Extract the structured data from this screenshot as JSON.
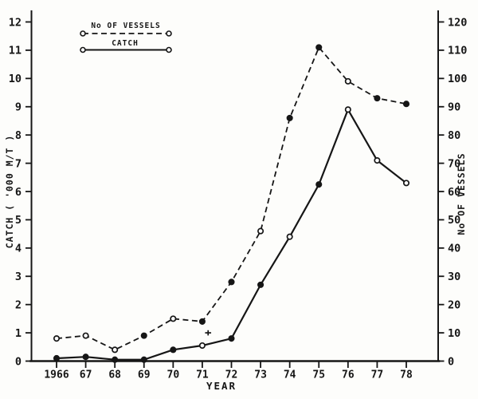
{
  "figure": {
    "paper_color": "#fdfdfb",
    "ink_color": "#161616"
  },
  "chart_data": {
    "type": "line",
    "title": "",
    "xlabel": "YEAR",
    "x_tick_labels": [
      "1966",
      "67",
      "68",
      "69",
      "70",
      "71",
      "72",
      "73",
      "74",
      "75",
      "76",
      "77",
      "78"
    ],
    "left_axis": {
      "label": "CATCH ( '000 M/T )",
      "min": 0,
      "max": 12,
      "major_step": 1,
      "tick_labels": [
        "0",
        "1",
        "2",
        "3",
        "4",
        "5",
        "6",
        "7",
        "8",
        "9",
        "10",
        "11",
        "12"
      ]
    },
    "right_axis": {
      "label": "No OF VESSELS",
      "min": 0,
      "max": 120,
      "major_step": 10,
      "tick_labels": [
        "0",
        "10",
        "20",
        "30",
        "40",
        "50",
        "60",
        "70",
        "80",
        "90",
        "100",
        "110",
        "120"
      ]
    },
    "legend": {
      "position": "top-left",
      "entries": [
        "No OF VESSELS",
        "CATCH"
      ]
    },
    "series": [
      {
        "name": "No OF VESSELS",
        "axis": "right",
        "line_style": "dashed",
        "marker": "circle",
        "values": [
          8,
          9,
          4,
          9,
          15,
          14,
          28,
          46,
          86,
          111,
          99,
          93,
          91
        ],
        "marker_filled": [
          false,
          false,
          false,
          true,
          false,
          true,
          true,
          false,
          true,
          true,
          false,
          true,
          true
        ]
      },
      {
        "name": "CATCH",
        "axis": "left",
        "line_style": "solid",
        "marker": "circle",
        "values": [
          0.1,
          0.15,
          0.05,
          0.05,
          0.4,
          0.55,
          0.8,
          2.7,
          4.4,
          6.25,
          8.9,
          7.1,
          6.3
        ],
        "marker_filled": [
          true,
          true,
          true,
          true,
          true,
          false,
          true,
          true,
          false,
          true,
          false,
          false,
          false
        ]
      }
    ],
    "annotations": [
      {
        "type": "plus-mark",
        "year_index": 5.2,
        "left_axis_value": 1.0
      }
    ]
  }
}
